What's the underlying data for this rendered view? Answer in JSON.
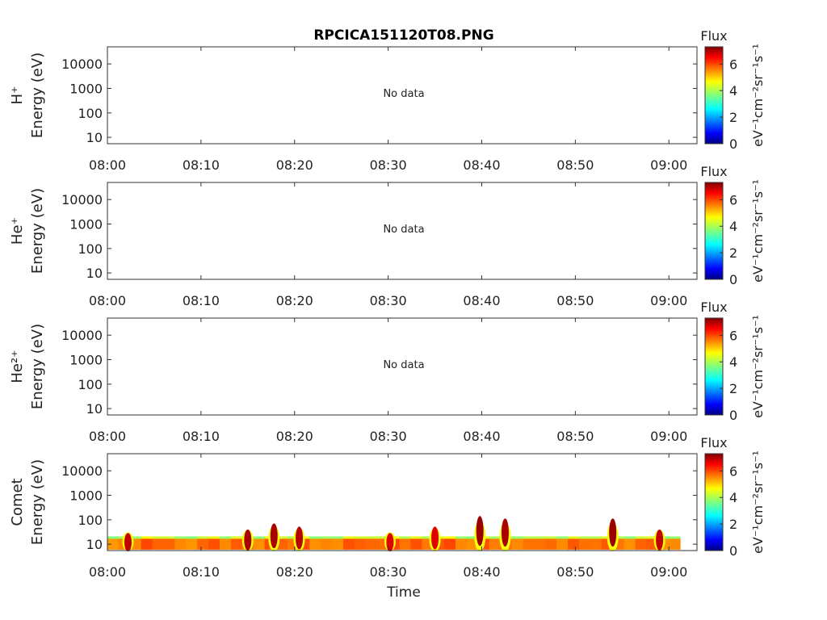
{
  "title": "RPCICA151120T08.PNG",
  "x_axis": {
    "label": "Time",
    "ticks": [
      "08:00",
      "08:10",
      "08:20",
      "08:30",
      "08:40",
      "08:50",
      "09:00"
    ],
    "tick_minutes": [
      0,
      10,
      20,
      30,
      40,
      50,
      60
    ],
    "range_minutes": [
      0,
      63
    ]
  },
  "colorbar": {
    "title": "Flux",
    "ticks": [
      "0",
      "2",
      "4",
      "6"
    ],
    "range": [
      0,
      7.3
    ],
    "colormap": "jet",
    "units_text": "eV⁻¹cm⁻²sr⁻¹s⁻¹"
  },
  "chart_data": [
    {
      "type": "heatmap",
      "panel": "H+",
      "ylabel": "H⁺ Energy (eV)",
      "ylabel_species": "H⁺",
      "ylabel_unit": "Energy (eV)",
      "yscale": "log",
      "ylim": [
        5.5,
        50000
      ],
      "y_ticks": [
        10,
        100,
        1000,
        10000
      ],
      "y_tick_labels": [
        "10",
        "100",
        "1000",
        "10000"
      ],
      "annotation": "No data",
      "blobs": []
    },
    {
      "type": "heatmap",
      "panel": "He+",
      "ylabel": "He⁺ Energy (eV)",
      "ylabel_species": "He⁺",
      "ylabel_unit": "Energy (eV)",
      "yscale": "log",
      "ylim": [
        5.5,
        50000
      ],
      "y_ticks": [
        10,
        100,
        1000,
        10000
      ],
      "y_tick_labels": [
        "10",
        "100",
        "1000",
        "10000"
      ],
      "annotation": "No data",
      "blobs": []
    },
    {
      "type": "heatmap",
      "panel": "He2+",
      "ylabel": "He²⁺ Energy (eV)",
      "ylabel_species": "He²⁺",
      "ylabel_unit": "Energy (eV)",
      "yscale": "log",
      "ylim": [
        5.5,
        50000
      ],
      "y_ticks": [
        10,
        100,
        1000,
        10000
      ],
      "y_tick_labels": [
        "10",
        "100",
        "1000",
        "10000"
      ],
      "annotation": "No data",
      "blobs": []
    },
    {
      "type": "heatmap",
      "panel": "Comet",
      "ylabel": "Comet Energy (eV)",
      "ylabel_species": "Comet",
      "ylabel_unit": "Energy (eV)",
      "yscale": "log",
      "ylim": [
        5.5,
        50000
      ],
      "y_ticks": [
        10,
        100,
        1000,
        10000
      ],
      "y_tick_labels": [
        "10",
        "100",
        "1000",
        "10000"
      ],
      "annotation": "",
      "data_minutes": [
        0,
        61
      ],
      "background_flux_band": {
        "energy_low": 6,
        "energy_high": 18,
        "flux": 5.6
      },
      "blobs": [
        {
          "minute": 2.2,
          "peak_energy": 12,
          "flux": 6.8
        },
        {
          "minute": 15.0,
          "peak_energy": 15,
          "flux": 7.0
        },
        {
          "minute": 17.8,
          "peak_energy": 22,
          "flux": 7.0
        },
        {
          "minute": 20.5,
          "peak_energy": 18,
          "flux": 6.9
        },
        {
          "minute": 30.2,
          "peak_energy": 12,
          "flux": 6.6
        },
        {
          "minute": 35.0,
          "peak_energy": 18,
          "flux": 6.6
        },
        {
          "minute": 39.8,
          "peak_energy": 35,
          "flux": 7.1
        },
        {
          "minute": 42.5,
          "peak_energy": 30,
          "flux": 7.0
        },
        {
          "minute": 54.0,
          "peak_energy": 30,
          "flux": 7.1
        },
        {
          "minute": 59.0,
          "peak_energy": 15,
          "flux": 6.8
        }
      ]
    }
  ]
}
